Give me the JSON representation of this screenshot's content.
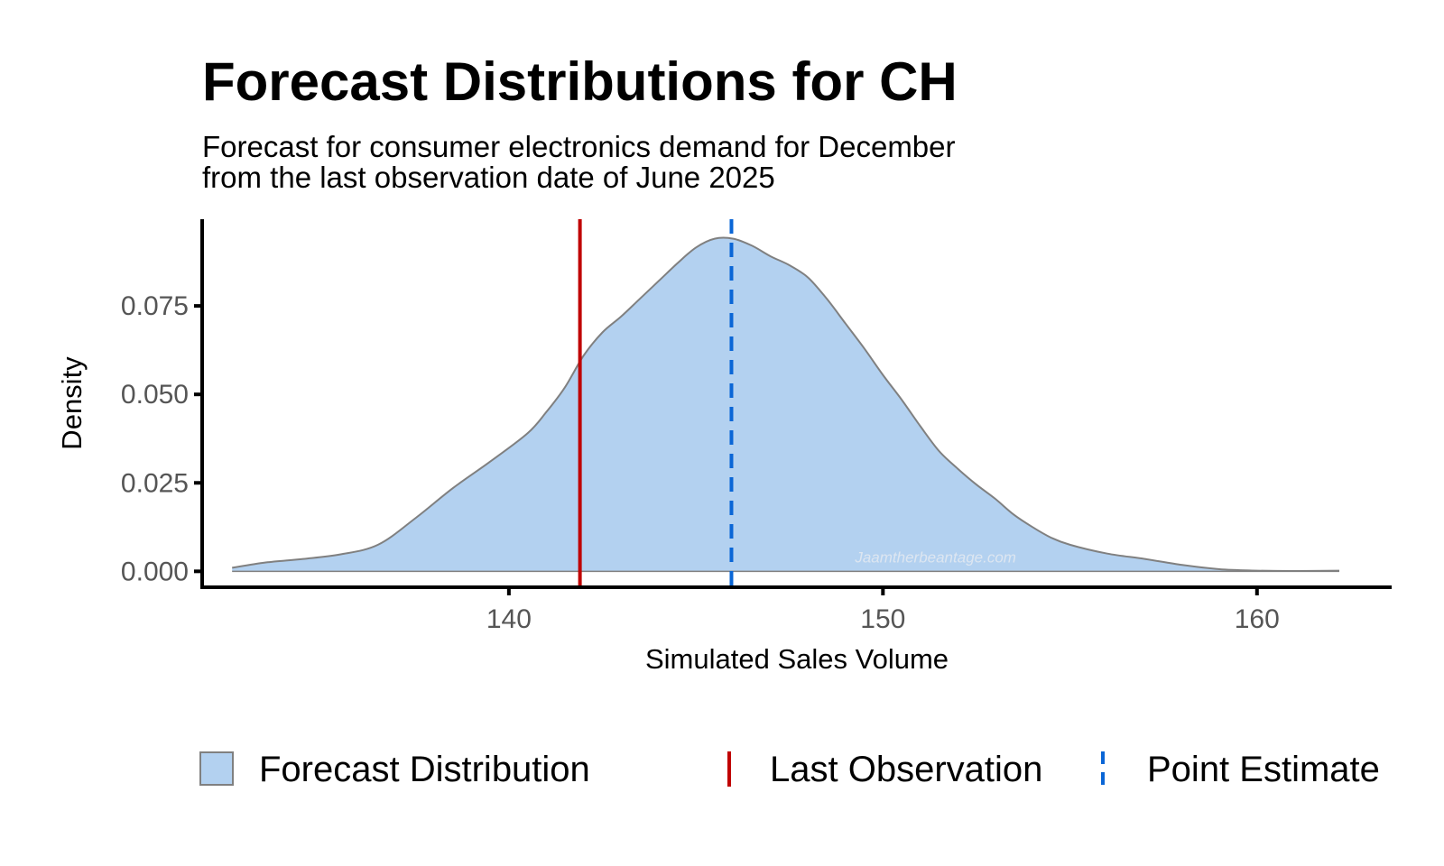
{
  "title": "Forecast Distributions for CH",
  "subtitle": [
    "Forecast for consumer electronics demand for December",
    "from the last observation date of June 2025"
  ],
  "watermark": "Jaamtherbeantage.com",
  "colors": {
    "fill": "#b3d1f0",
    "outline": "#808080",
    "last_observation": "#c00000",
    "point_estimate": "#0a66d6",
    "axis": "#000000",
    "tick_label": "#555555"
  },
  "chart_data": {
    "type": "area",
    "title": "Forecast Distributions for CH",
    "xlabel": "Simulated Sales Volume",
    "ylabel": "Density",
    "xlim": [
      131.8,
      163.6
    ],
    "ylim": [
      -0.0045,
      0.0995
    ],
    "x_ticks": [
      140,
      150,
      160
    ],
    "x_tick_labels": [
      "140",
      "150",
      "160"
    ],
    "y_ticks": [
      0.0,
      0.025,
      0.05,
      0.075
    ],
    "y_tick_labels": [
      "0.000",
      "0.025",
      "0.050",
      "0.075"
    ],
    "grid": false,
    "legend_position": "bottom",
    "series": [
      {
        "name": "Forecast Distribution",
        "x": [
          132.6,
          133.5,
          134.5,
          135.5,
          136.5,
          137.5,
          138.5,
          139.5,
          140.5,
          141.0,
          141.5,
          142.0,
          142.5,
          143.0,
          143.5,
          144.0,
          144.5,
          145.0,
          145.5,
          146.0,
          146.5,
          147.0,
          147.5,
          148.0,
          148.5,
          149.0,
          149.5,
          150.0,
          150.5,
          151.0,
          151.5,
          152.0,
          152.5,
          153.0,
          153.5,
          154.0,
          154.5,
          155.0,
          156.0,
          157.0,
          158.0,
          159.0,
          160.0,
          161.0,
          162.2
        ],
        "y": [
          0.001,
          0.0025,
          0.0035,
          0.0048,
          0.0075,
          0.015,
          0.0235,
          0.031,
          0.039,
          0.045,
          0.052,
          0.061,
          0.0675,
          0.072,
          0.077,
          0.082,
          0.087,
          0.0915,
          0.094,
          0.094,
          0.092,
          0.089,
          0.0865,
          0.083,
          0.077,
          0.07,
          0.063,
          0.0555,
          0.0485,
          0.041,
          0.034,
          0.029,
          0.0245,
          0.0205,
          0.016,
          0.0125,
          0.0095,
          0.0075,
          0.005,
          0.0035,
          0.0018,
          0.0006,
          0.0002,
          0.0001,
          0.0002
        ]
      }
    ],
    "reference_lines": [
      {
        "name": "Last Observation",
        "x": 141.9,
        "style": "solid",
        "color": "#c00000"
      },
      {
        "name": "Point Estimate",
        "x": 145.95,
        "style": "dashed",
        "color": "#0a66d6"
      }
    ],
    "legend": [
      "Forecast Distribution",
      "Last Observation",
      "Point Estimate"
    ]
  }
}
